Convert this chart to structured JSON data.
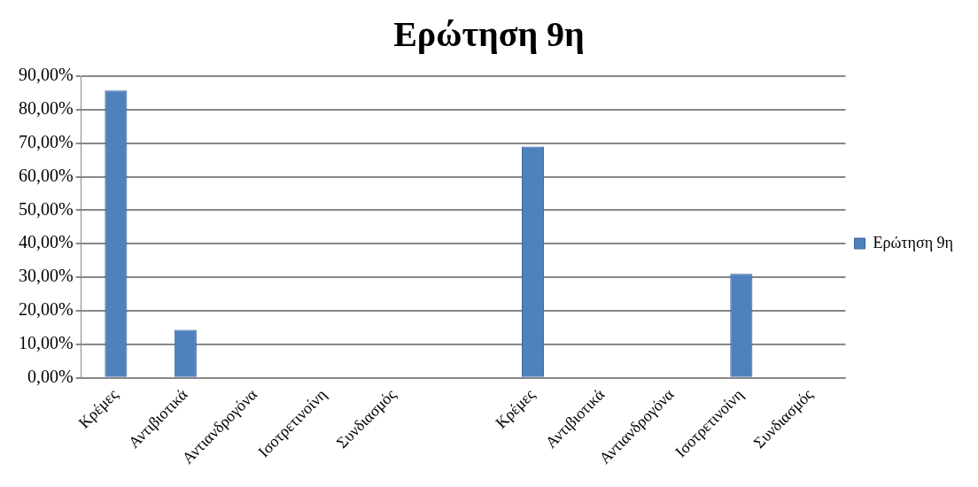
{
  "chart_data": {
    "type": "bar",
    "title": "Ερώτηση 9η",
    "categories": [
      "Κρέμες",
      "Αντιβιοτικά",
      "Αντιανδρογόνα",
      "Ισοτρετινοίνη",
      "Συνδιασμός",
      null,
      "Κρέμες",
      "Αντιβιοτικά",
      "Αντιανδρογόνα",
      "Ισοτρετινοίνη",
      "Συνδιασμός"
    ],
    "series": [
      {
        "name": "Ερώτηση 9η",
        "color": "#4f81bd",
        "values": [
          85.7,
          14.3,
          0,
          0,
          0,
          null,
          69,
          0,
          0,
          31,
          0
        ]
      }
    ],
    "ylim": [
      0,
      90
    ],
    "yticks": [
      {
        "value": 0,
        "label": "0,00%"
      },
      {
        "value": 10,
        "label": "10,00%"
      },
      {
        "value": 20,
        "label": "20,00%"
      },
      {
        "value": 30,
        "label": "30,00%"
      },
      {
        "value": 40,
        "label": "40,00%"
      },
      {
        "value": 50,
        "label": "50,00%"
      },
      {
        "value": 60,
        "label": "60,00%"
      },
      {
        "value": 70,
        "label": "70,00%"
      },
      {
        "value": 80,
        "label": "80,00%"
      },
      {
        "value": 90,
        "label": "90,00%"
      }
    ],
    "grid": "y",
    "legend": "right"
  }
}
